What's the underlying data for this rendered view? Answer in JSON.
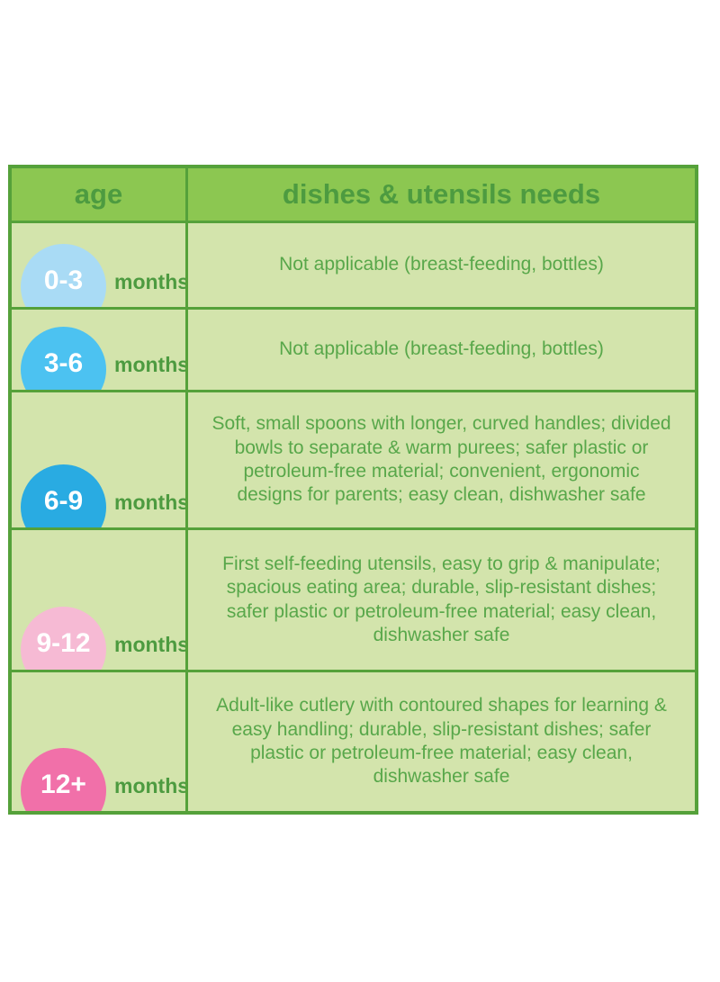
{
  "chart_data": {
    "type": "table",
    "columns": [
      "age",
      "dishes & utensils needs"
    ],
    "rows": [
      {
        "age": "0-3",
        "unit": "months",
        "badge_color": "#a9dbf5",
        "need": "Not applicable (breast-feeding, bottles)"
      },
      {
        "age": "3-6",
        "unit": "months",
        "badge_color": "#4cc2f1",
        "need": "Not applicable (breast-feeding, bottles)"
      },
      {
        "age": "6-9",
        "unit": "months",
        "badge_color": "#29abe2",
        "need": "Soft, small spoons with longer, curved handles; divided bowls to separate & warm purees; safer plastic or petroleum-free material; convenient, ergonomic designs for parents; easy clean, dishwasher safe"
      },
      {
        "age": "9-12",
        "unit": "months",
        "badge_color": "#f6bad4",
        "need": "First self-feeding utensils, easy to grip & manipulate; spacious eating area; durable, slip-resistant dishes; safer plastic or petroleum-free material; easy clean, dishwasher safe"
      },
      {
        "age": "12+",
        "unit": "months",
        "badge_color": "#f170a9",
        "need": "Adult-like cutlery with contoured shapes for learning & easy handling; durable, slip-resistant dishes; safer plastic or petroleum-free material; easy clean, dishwasher safe"
      }
    ],
    "layout": {
      "legend": "none",
      "grid": "table-borders"
    },
    "colors": {
      "header_background": "#8cc751",
      "header_text": "#4d9b40",
      "body_background": "#d3e4ac",
      "body_text": "#58a74a",
      "border": "#55a13a",
      "badge_number_text": "#ffffff"
    }
  }
}
